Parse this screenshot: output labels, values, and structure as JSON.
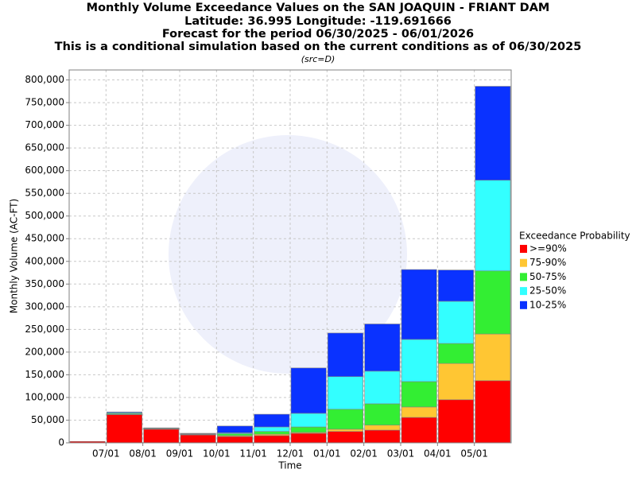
{
  "chart_data": {
    "type": "stacked_bar",
    "title": "Monthly Volume Exceedance Values on the SAN JOAQUIN - FRIANT DAM",
    "subtitles": [
      "Latitude: 36.995 Longitude: -119.691666",
      "Forecast for the period 06/30/2025 - 06/01/2026",
      "This is a conditional simulation based on the current conditions as of 06/30/2025"
    ],
    "note": "(src=D)",
    "x_label": "Time",
    "y_label": "Monthly Volume (AC-FT)",
    "legend_title": "Exceedance Probability",
    "legend_position": "right",
    "categories": [
      null,
      "07/01",
      "08/01",
      "09/01",
      "10/01",
      "11/01",
      "12/01",
      "01/01",
      "02/01",
      "03/01",
      "04/01",
      "05/01"
    ],
    "series": [
      {
        "name": ">=90%",
        "color": "#ff0000",
        "values": [
          3000,
          62000,
          30000,
          17500,
          14000,
          16000,
          21000,
          25000,
          28000,
          56000,
          95000,
          137000
        ]
      },
      {
        "name": "75-90%",
        "color": "#ffc633",
        "values": [
          0,
          1000,
          500,
          500,
          2000,
          3000,
          2000,
          5000,
          11000,
          23000,
          80000,
          103000
        ]
      },
      {
        "name": "50-75%",
        "color": "#33ee33",
        "values": [
          0,
          1500,
          800,
          1000,
          4000,
          6000,
          12000,
          44000,
          47000,
          56000,
          44000,
          139000
        ]
      },
      {
        "name": "25-50%",
        "color": "#33ffff",
        "values": [
          0,
          2000,
          700,
          1000,
          2000,
          10000,
          30000,
          72000,
          72000,
          93000,
          93000,
          200000
        ]
      },
      {
        "name": "10-25%",
        "color": "#0a32ff",
        "values": [
          0,
          1500,
          1000,
          1000,
          15000,
          28000,
          100000,
          96000,
          104000,
          154000,
          69000,
          207000
        ]
      }
    ],
    "ylim": [
      0,
      822000
    ],
    "yticks": [
      0,
      {
        "value": 50000,
        "label": "50,000"
      },
      {
        "value": 100000,
        "label": "100,000"
      },
      {
        "value": 150000,
        "label": "150,000"
      },
      {
        "value": 200000,
        "label": "200,000"
      },
      {
        "value": 250000,
        "label": "250,000"
      },
      {
        "value": 300000,
        "label": "300,000"
      },
      {
        "value": 350000,
        "label": "350,000"
      },
      {
        "value": 400000,
        "label": "400,000"
      },
      {
        "value": 450000,
        "label": "450,000"
      },
      {
        "value": 500000,
        "label": "500,000"
      },
      {
        "value": 550000,
        "label": "550,000"
      },
      {
        "value": 600000,
        "label": "600,000"
      },
      {
        "value": 650000,
        "label": "650,000"
      },
      {
        "value": 700000,
        "label": "700,000"
      },
      {
        "value": 750000,
        "label": "750,000"
      },
      {
        "value": 800000,
        "label": "800,000"
      }
    ],
    "grid": true
  }
}
